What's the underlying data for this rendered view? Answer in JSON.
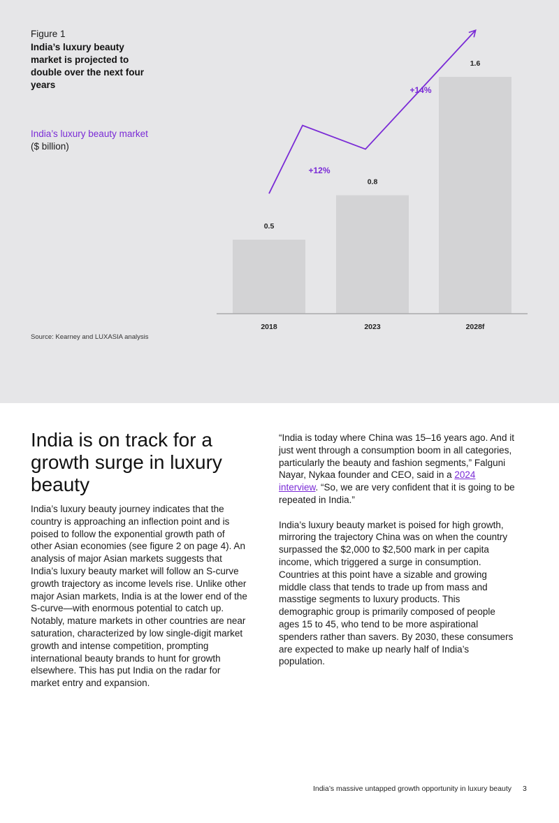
{
  "figure": {
    "number": "Figure 1",
    "title": "India’s luxury beauty market is projected to double over the next four years",
    "metric": "India’s luxury beauty market",
    "unit": "($ billion)",
    "source": "Source: Kearney and LUXASIA analysis"
  },
  "chart_data": {
    "type": "bar",
    "categories": [
      "2018",
      "2023",
      "2028f"
    ],
    "values": [
      0.5,
      0.8,
      1.6
    ],
    "value_labels": [
      "0.5",
      "0.8",
      "1.6"
    ],
    "growth_annotations": [
      {
        "from": "2018",
        "to": "2023",
        "label": "+12%"
      },
      {
        "from": "2023",
        "to": "2028f",
        "label": "+14%"
      }
    ],
    "ylim": [
      0,
      1.6
    ],
    "grid": false,
    "bar_color": "#d3d3d5",
    "accent_color": "#7a2bd6"
  },
  "article": {
    "heading": "India is on track for a growth surge in luxury beauty",
    "left_paragraph": "India’s luxury beauty journey indicates that the country is approaching an inflection point and is poised to follow the exponential growth path of other Asian economies (see figure 2 on page 4). An analysis of major Asian markets suggests that India’s luxury beauty market will follow an S-curve growth trajectory as income levels rise. Unlike other major Asian markets, India is at the lower end of the S-curve—with enormous potential to catch up. Notably, mature markets in other countries are near saturation, characterized by low single-digit market growth and intense competition, prompting international beauty brands to hunt for growth elsewhere. This has put India on the radar for market entry and expansion.",
    "quote_before_link": "“India is today where China was 15–16 years ago. And it just went through a consumption boom in all categories, particularly the beauty and fashion segments,” Falguni Nayar, Nykaa founder and CEO, said in a ",
    "quote_link": "2024 interview",
    "quote_after_link": ". “So, we are very confident that it is going to be  repeated in India.”",
    "right_paragraph": "India’s luxury beauty market is poised for high growth, mirroring the trajectory China was on when the country surpassed the $2,000 to $2,500 mark in per capita income, which triggered a surge in consumption. Countries at this point have a sizable and growing middle class that tends to trade up from mass and masstige segments to luxury products. This demographic group is primarily composed of people ages 15 to 45, who tend to be more aspirational spenders rather than savers. By 2030, these consumers are expected to make up nearly half of India’s population."
  },
  "footer": {
    "title": "India’s massive untapped growth opportunity in luxury beauty",
    "page": "3"
  }
}
